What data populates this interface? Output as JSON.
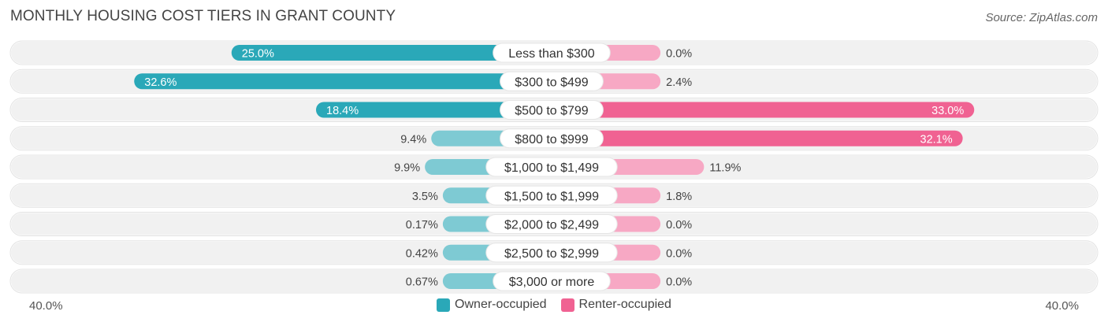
{
  "header": {
    "title": "MONTHLY HOUSING COST TIERS IN GRANT COUNTY",
    "source": "Source: ZipAtlas.com"
  },
  "colors": {
    "owner": "#2aa8b8",
    "owner_light": "#7ecad3",
    "renter": "#f06292",
    "renter_light": "#f7a8c4",
    "row_bg": "#f1f1f1"
  },
  "chart_data": {
    "type": "bar",
    "orientation": "horizontal-diverging",
    "title": "MONTHLY HOUSING COST TIERS IN GRANT COUNTY",
    "categories": [
      "Less than $300",
      "$300 to $499",
      "$500 to $799",
      "$800 to $999",
      "$1,000 to $1,499",
      "$1,500 to $1,999",
      "$2,000 to $2,499",
      "$2,500 to $2,999",
      "$3,000 or more"
    ],
    "series": [
      {
        "name": "Owner-occupied",
        "values": [
          25.0,
          32.6,
          18.4,
          9.4,
          9.9,
          3.5,
          0.17,
          0.42,
          0.67
        ],
        "labels": [
          "25.0%",
          "32.6%",
          "18.4%",
          "9.4%",
          "9.9%",
          "3.5%",
          "0.17%",
          "0.42%",
          "0.67%"
        ]
      },
      {
        "name": "Renter-occupied",
        "values": [
          0.0,
          2.4,
          33.0,
          32.1,
          11.9,
          1.8,
          0.0,
          0.0,
          0.0
        ],
        "labels": [
          "0.0%",
          "2.4%",
          "33.0%",
          "32.1%",
          "11.9%",
          "1.8%",
          "0.0%",
          "0.0%",
          "0.0%"
        ]
      }
    ],
    "xlim": [
      -40,
      40
    ],
    "axis_left_label": "40.0%",
    "axis_right_label": "40.0%",
    "legend_position": "bottom-center"
  }
}
